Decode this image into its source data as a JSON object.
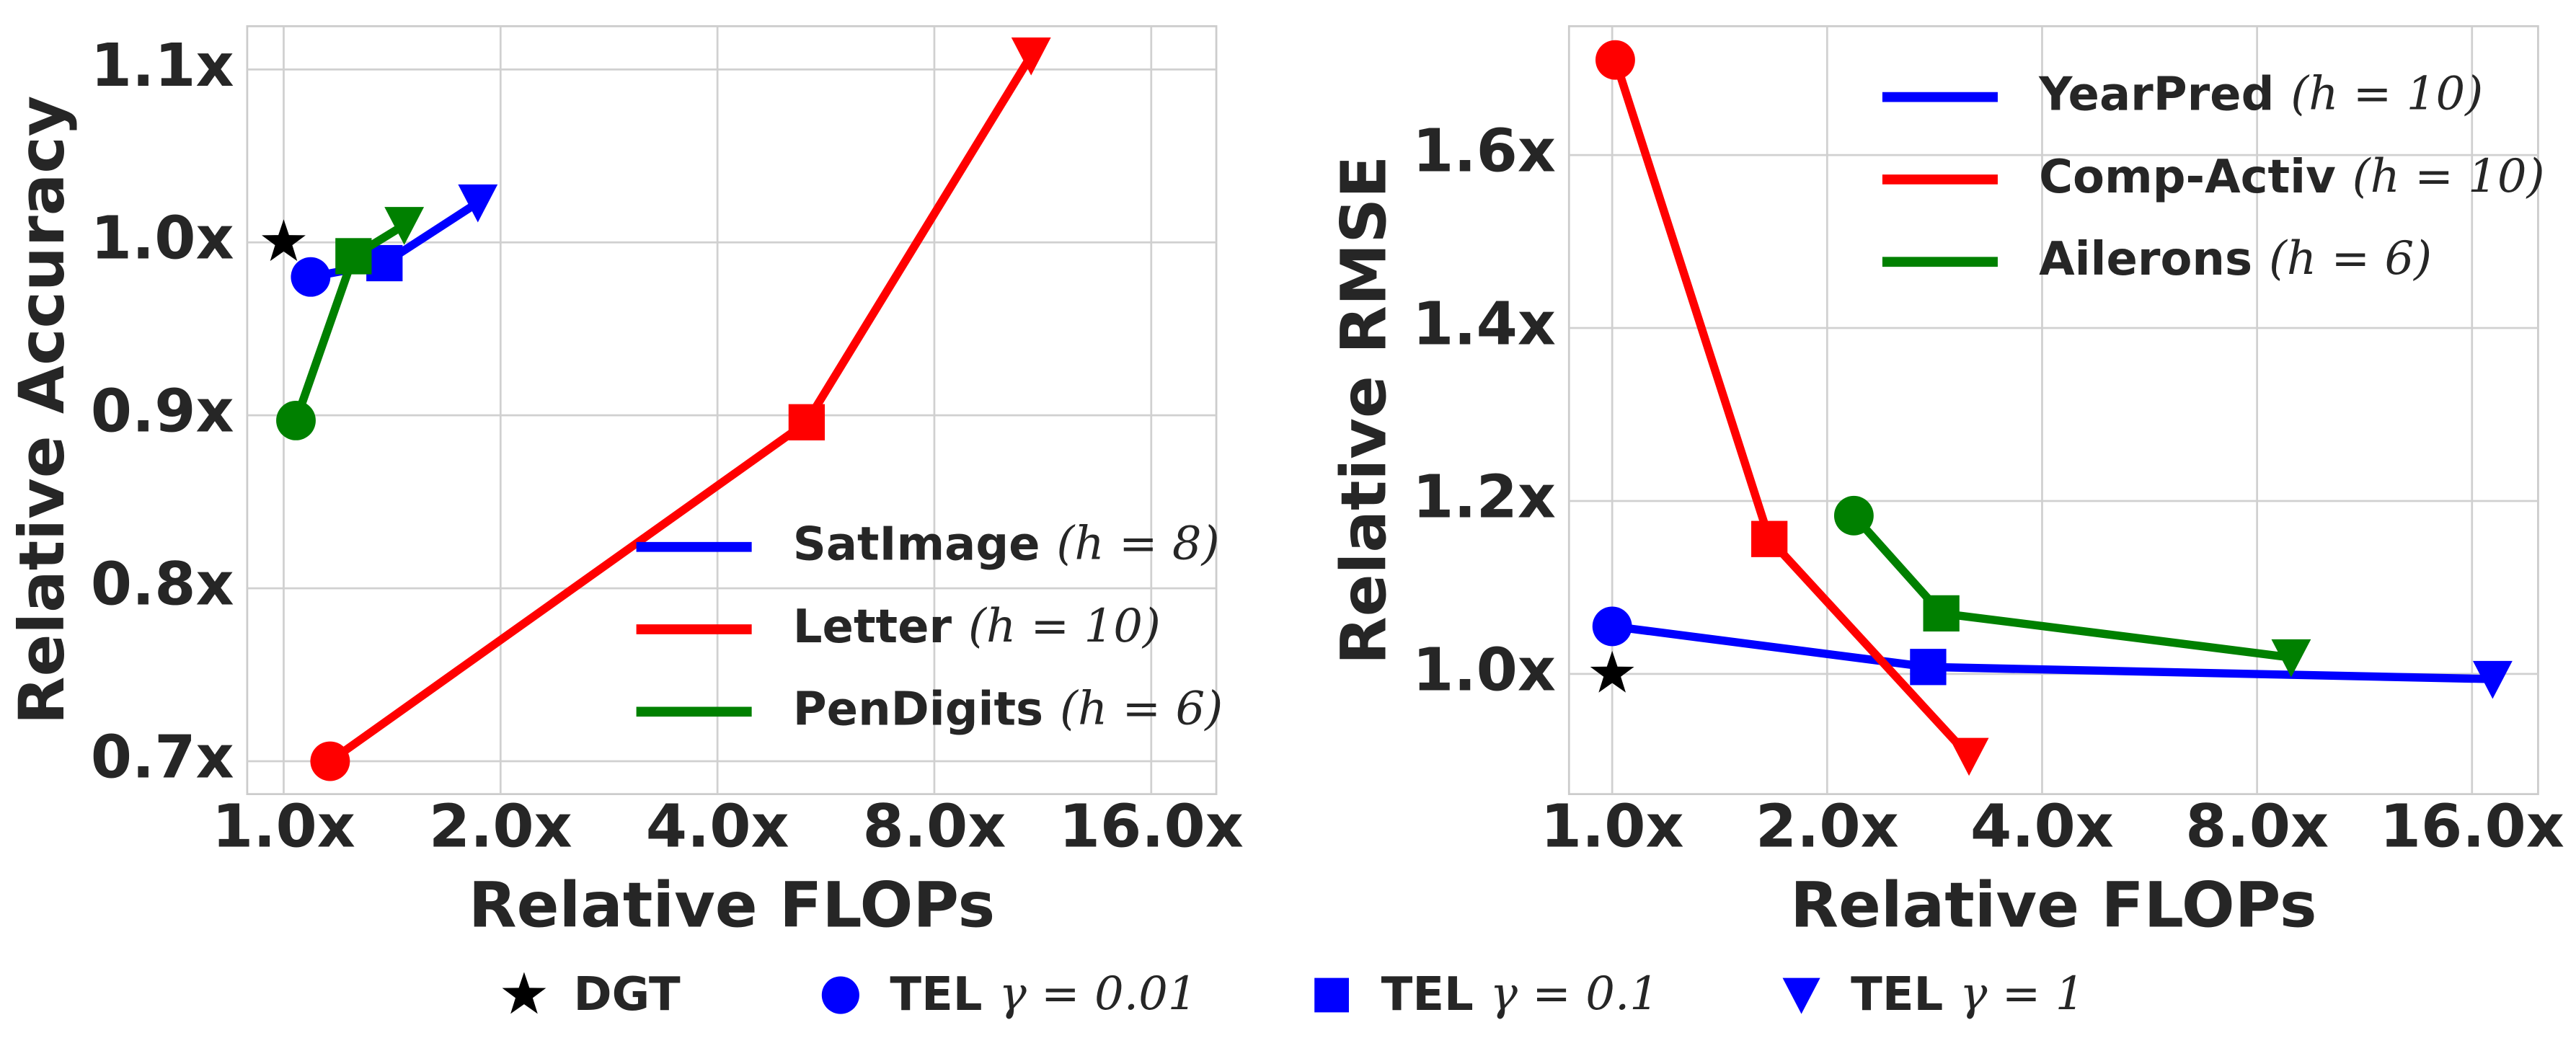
{
  "chart_data": [
    {
      "type": "line",
      "xlabel": "Relative FLOPs",
      "ylabel": "Relative Accuracy",
      "xscale": "log2",
      "grid": true,
      "legend": "lower right",
      "xlim": [
        0.89,
        19.7
      ],
      "ylim": [
        0.681,
        1.125
      ],
      "xticks": [
        {
          "value": 1,
          "label": "1.0x"
        },
        {
          "value": 2,
          "label": "2.0x"
        },
        {
          "value": 4,
          "label": "4.0x"
        },
        {
          "value": 8,
          "label": "8.0x"
        },
        {
          "value": 16,
          "label": "16.0x"
        }
      ],
      "yticks": [
        {
          "value": 0.7,
          "label": "0.7x"
        },
        {
          "value": 0.8,
          "label": "0.8x"
        },
        {
          "value": 0.9,
          "label": "0.9x"
        },
        {
          "value": 1.0,
          "label": "1.0x"
        },
        {
          "value": 1.1,
          "label": "1.1x"
        }
      ],
      "reference_point": {
        "x": 1.0,
        "y": 1.0,
        "color": "#000000"
      },
      "series": [
        {
          "name": "SatImage",
          "param": "(h = 8)",
          "color": "#0000ff",
          "x": [
            1.09,
            1.38,
            1.86
          ],
          "values": [
            0.98,
            0.988,
            1.023
          ]
        },
        {
          "name": "Letter",
          "param": "(h = 10)",
          "color": "#ff0000",
          "x": [
            1.16,
            5.32,
            10.9
          ],
          "values": [
            0.7,
            0.896,
            1.108
          ]
        },
        {
          "name": "PenDigits",
          "param": "(h = 6)",
          "color": "#008000",
          "x": [
            1.04,
            1.25,
            1.47
          ],
          "values": [
            0.897,
            0.992,
            1.01
          ]
        }
      ]
    },
    {
      "type": "line",
      "xlabel": "Relative FLOPs",
      "ylabel": "Relative RMSE",
      "xscale": "log2",
      "grid": true,
      "legend": "upper right",
      "xlim": [
        0.87,
        19.8
      ],
      "ylim": [
        0.861,
        1.749
      ],
      "xticks": [
        {
          "value": 1,
          "label": "1.0x"
        },
        {
          "value": 2,
          "label": "2.0x"
        },
        {
          "value": 4,
          "label": "4.0x"
        },
        {
          "value": 8,
          "label": "8.0x"
        },
        {
          "value": 16,
          "label": "16.0x"
        }
      ],
      "yticks": [
        {
          "value": 1.0,
          "label": "1.0x"
        },
        {
          "value": 1.2,
          "label": "1.2x"
        },
        {
          "value": 1.4,
          "label": "1.4x"
        },
        {
          "value": 1.6,
          "label": "1.6x"
        }
      ],
      "reference_point": {
        "x": 1.0,
        "y": 1.0,
        "color": "#000000"
      },
      "series": [
        {
          "name": "YearPred",
          "param": "(h = 10)",
          "color": "#0000ff",
          "x": [
            1.0,
            2.77,
            17.1
          ],
          "values": [
            1.055,
            1.008,
            0.994
          ]
        },
        {
          "name": "Comp-Activ",
          "param": "(h = 10)",
          "color": "#ff0000",
          "x": [
            1.01,
            1.66,
            3.16
          ],
          "values": [
            1.71,
            1.156,
            0.905
          ]
        },
        {
          "name": "Ailerons",
          "param": "(h = 6)",
          "color": "#008000",
          "x": [
            2.18,
            2.89,
            8.93
          ],
          "values": [
            1.183,
            1.07,
            1.019
          ]
        }
      ]
    }
  ],
  "legend": [
    {
      "label": "DGT",
      "marker": "star"
    },
    {
      "label": "TEL",
      "param": "γ = 0.01",
      "marker": "circle"
    },
    {
      "label": "TEL",
      "param": "γ = 0.1",
      "marker": "square"
    },
    {
      "label": "TEL",
      "param": "γ = 1",
      "marker": "triangle"
    }
  ]
}
